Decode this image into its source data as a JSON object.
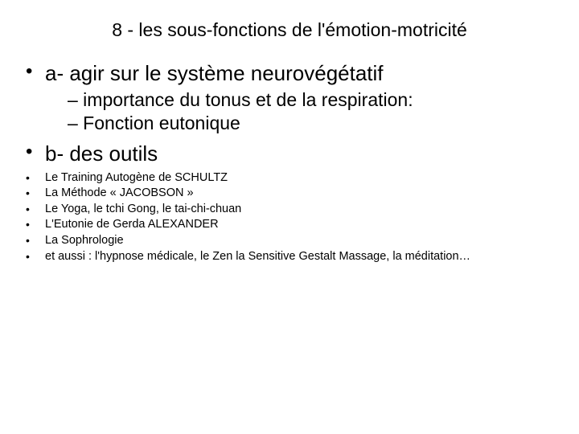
{
  "title": "8 - les sous-fonctions de l'émotion-motricité",
  "sections": {
    "a": {
      "heading": "a- agir sur le système neurovégétatif",
      "sub": [
        "– importance du tonus et de la respiration:",
        "– Fonction eutonique"
      ]
    },
    "b": {
      "heading": "b- des outils",
      "items": [
        "Le Training Autogène de SCHULTZ",
        "La Méthode « JACOBSON »",
        "Le Yoga, le tchi Gong, le tai-chi-chuan",
        "L'Eutonie de Gerda ALEXANDER",
        "La Sophrologie",
        "et aussi : l'hypnose médicale, le Zen la Sensitive Gestalt Massage, la méditation…"
      ]
    }
  },
  "colors": {
    "background": "#ffffff",
    "text": "#000000"
  },
  "fonts": {
    "family": "Arial",
    "title_size_pt": 17,
    "l1_size_pt": 20,
    "l2_size_pt": 17,
    "l3_size_pt": 11
  }
}
